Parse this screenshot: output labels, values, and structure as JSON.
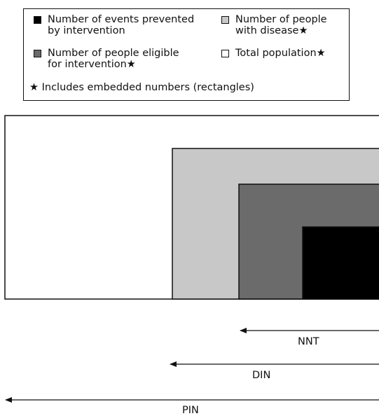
{
  "legend": {
    "items": [
      {
        "lines": [
          "Number of events prevented",
          "by intervention"
        ],
        "color": "#000000"
      },
      {
        "lines": [
          "Number of people",
          "with disease★"
        ],
        "color": "#c8c8c8"
      },
      {
        "lines": [
          "Number of people eligible",
          "for intervention★"
        ],
        "color": "#6b6b6b"
      },
      {
        "lines": [
          "Total population★"
        ],
        "color": "#ffffff"
      }
    ],
    "note": "★ Includes embedded numbers (rectangles)"
  },
  "measures": {
    "nnt": "NNT",
    "din": "DIN",
    "pin": "PIN"
  }
}
